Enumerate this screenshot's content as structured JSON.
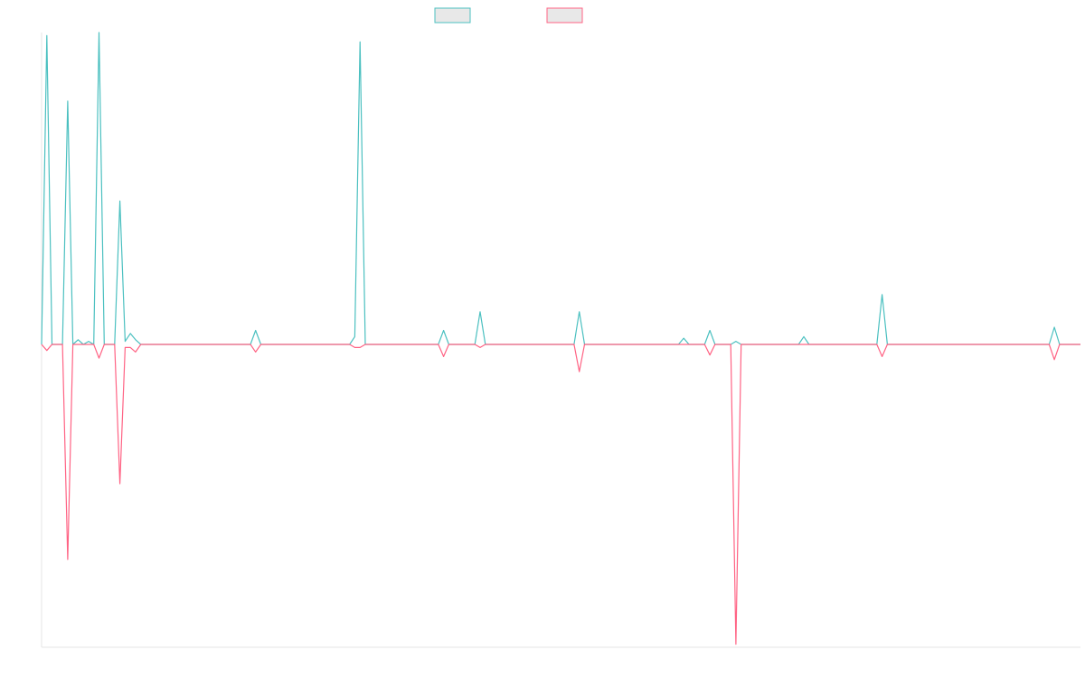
{
  "chart_data": {
    "type": "line",
    "title": "",
    "xlabel": "",
    "ylabel": "",
    "ylim": [
      -1,
      1
    ],
    "x_count": 200,
    "grid": false,
    "legend_position": "top-center",
    "series": [
      {
        "color": "#4bc0c0",
        "fill": "#e8e8e8",
        "points": [
          [
            0,
            0
          ],
          [
            1,
            0.99
          ],
          [
            2,
            0
          ],
          [
            4,
            0
          ],
          [
            5,
            0.78
          ],
          [
            6,
            0
          ],
          [
            7,
            0.015
          ],
          [
            8,
            0
          ],
          [
            9,
            0.01
          ],
          [
            10,
            0
          ],
          [
            11,
            1.0
          ],
          [
            12,
            0
          ],
          [
            14,
            0
          ],
          [
            15,
            0.46
          ],
          [
            16,
            0.01
          ],
          [
            17,
            0.035
          ],
          [
            18,
            0.015
          ],
          [
            19,
            0
          ],
          [
            40,
            0
          ],
          [
            41,
            0.045
          ],
          [
            42,
            0
          ],
          [
            59,
            0
          ],
          [
            60,
            0.025
          ],
          [
            61,
            0.97
          ],
          [
            62,
            0
          ],
          [
            76,
            0
          ],
          [
            77,
            0.045
          ],
          [
            78,
            0
          ],
          [
            83,
            0
          ],
          [
            84,
            0.105
          ],
          [
            85,
            0
          ],
          [
            102,
            0
          ],
          [
            103,
            0.105
          ],
          [
            104,
            0
          ],
          [
            122,
            0
          ],
          [
            123,
            0.02
          ],
          [
            124,
            0
          ],
          [
            127,
            0
          ],
          [
            128,
            0.045
          ],
          [
            129,
            0
          ],
          [
            132,
            0
          ],
          [
            133,
            0.01
          ],
          [
            134,
            0
          ],
          [
            145,
            0
          ],
          [
            146,
            0.025
          ],
          [
            147,
            0
          ],
          [
            160,
            0
          ],
          [
            161,
            0.16
          ],
          [
            162,
            0
          ],
          [
            193,
            0
          ],
          [
            194,
            0.055
          ],
          [
            195,
            0
          ],
          [
            199,
            0
          ]
        ]
      },
      {
        "color": "#ff6384",
        "fill": "#e8e8e8",
        "points": [
          [
            0,
            0
          ],
          [
            1,
            -0.02
          ],
          [
            2,
            0
          ],
          [
            4,
            0
          ],
          [
            5,
            -0.71
          ],
          [
            6,
            0
          ],
          [
            10,
            0
          ],
          [
            11,
            -0.045
          ],
          [
            12,
            0
          ],
          [
            14,
            0
          ],
          [
            15,
            -0.46
          ],
          [
            16,
            -0.01
          ],
          [
            17,
            -0.01
          ],
          [
            18,
            -0.025
          ],
          [
            19,
            0
          ],
          [
            40,
            0
          ],
          [
            41,
            -0.025
          ],
          [
            42,
            0
          ],
          [
            59,
            0
          ],
          [
            60,
            -0.01
          ],
          [
            61,
            -0.01
          ],
          [
            62,
            0
          ],
          [
            76,
            0
          ],
          [
            77,
            -0.04
          ],
          [
            78,
            0
          ],
          [
            83,
            0
          ],
          [
            84,
            -0.01
          ],
          [
            85,
            0
          ],
          [
            102,
            0
          ],
          [
            103,
            -0.09
          ],
          [
            104,
            0
          ],
          [
            127,
            0
          ],
          [
            128,
            -0.035
          ],
          [
            129,
            0
          ],
          [
            132,
            0
          ],
          [
            133,
            -0.99
          ],
          [
            134,
            0
          ],
          [
            160,
            0
          ],
          [
            161,
            -0.04
          ],
          [
            162,
            0
          ],
          [
            193,
            0
          ],
          [
            194,
            -0.05
          ],
          [
            195,
            0
          ],
          [
            199,
            0
          ]
        ]
      }
    ]
  }
}
